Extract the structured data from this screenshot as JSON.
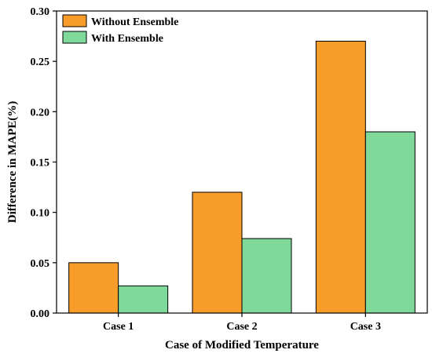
{
  "chart_data": {
    "type": "bar",
    "title": "",
    "xlabel": "Case of Modified Temperature",
    "ylabel": "Difference in MAPE(%)",
    "categories": [
      "Case 1",
      "Case 2",
      "Case 3"
    ],
    "series": [
      {
        "name": "Without Ensemble",
        "color": "#f99d2a",
        "values": [
          0.05,
          0.12,
          0.27
        ]
      },
      {
        "name": "With Ensemble",
        "color": "#7fd99b",
        "values": [
          0.027,
          0.074,
          0.18
        ]
      }
    ],
    "ylim": [
      0,
      0.3
    ],
    "yticks": [
      "0.00",
      "0.05",
      "0.10",
      "0.15",
      "0.20",
      "0.25",
      "0.30"
    ],
    "legend_position": "top-left",
    "grid": false
  }
}
